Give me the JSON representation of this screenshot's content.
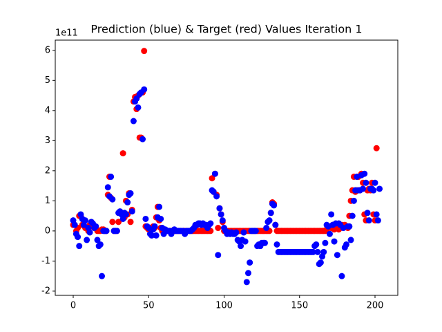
{
  "chart_data": {
    "type": "scatter",
    "title": "Prediction (blue) & Target (red) Values Iteration 1",
    "y_offset_label": "1e11",
    "xlim": [
      -11.9,
      215.1
    ],
    "ylim": [
      -2.14,
      6.34
    ],
    "xticks": [
      0,
      50,
      100,
      150,
      200
    ],
    "yticks": [
      -2,
      -1,
      0,
      1,
      2,
      3,
      4,
      5,
      6
    ],
    "x": [
      0,
      1,
      2,
      3,
      4,
      5,
      6,
      7,
      8,
      9,
      10,
      11,
      12,
      13,
      14,
      15,
      16,
      17,
      18,
      19,
      20,
      21,
      22,
      23,
      24,
      25,
      26,
      27,
      28,
      29,
      30,
      31,
      32,
      33,
      34,
      35,
      36,
      37,
      38,
      39,
      40,
      41,
      42,
      43,
      44,
      45,
      46,
      47,
      48,
      49,
      50,
      51,
      52,
      53,
      54,
      55,
      56,
      57,
      58,
      59,
      60,
      61,
      62,
      63,
      64,
      65,
      66,
      67,
      68,
      69,
      70,
      71,
      72,
      73,
      74,
      75,
      76,
      77,
      78,
      79,
      80,
      81,
      82,
      83,
      84,
      85,
      86,
      87,
      88,
      89,
      90,
      91,
      92,
      93,
      94,
      95,
      96,
      97,
      98,
      99,
      100,
      101,
      102,
      103,
      104,
      105,
      106,
      107,
      108,
      109,
      110,
      111,
      112,
      113,
      114,
      115,
      116,
      117,
      118,
      119,
      120,
      121,
      122,
      123,
      124,
      125,
      126,
      127,
      128,
      129,
      130,
      131,
      132,
      133,
      134,
      135,
      136,
      137,
      138,
      139,
      140,
      141,
      142,
      143,
      144,
      145,
      146,
      147,
      148,
      149,
      150,
      151,
      152,
      153,
      154,
      155,
      156,
      157,
      158,
      159,
      160,
      161,
      162,
      163,
      164,
      165,
      166,
      167,
      168,
      169,
      170,
      171,
      172,
      173,
      174,
      175,
      176,
      177,
      178,
      179,
      180,
      181,
      182,
      183,
      184,
      185,
      186,
      187,
      188,
      189,
      190,
      191,
      192,
      193,
      194,
      195,
      196,
      197,
      198,
      199,
      200,
      201,
      202,
      203
    ],
    "series": [
      {
        "name": "Target",
        "color": "#ff0000",
        "values": [
          0.2,
          0.2,
          0,
          0.1,
          0.5,
          0.5,
          0.2,
          0.3,
          0.1,
          0.1,
          0,
          0.2,
          0.15,
          0.2,
          0.1,
          0.1,
          0,
          0,
          0,
          0.05,
          0.05,
          0,
          0,
          1.2,
          1.8,
          1.1,
          0.3,
          0,
          0,
          0,
          0.3,
          0.6,
          0.6,
          2.58,
          0.45,
          1.0,
          0.55,
          1.25,
          0.3,
          0.7,
          4.3,
          4.45,
          4.05,
          4.5,
          3.1,
          3.1,
          4.6,
          5.98,
          0.15,
          0.1,
          0.05,
          0.1,
          0.05,
          0.15,
          0.1,
          0.45,
          0.8,
          0.35,
          0.1,
          0,
          0,
          0,
          0,
          0,
          0,
          0,
          0,
          0,
          0,
          0,
          0,
          0,
          0,
          0,
          0,
          0,
          0,
          0,
          0,
          0,
          0,
          0,
          0,
          0,
          0,
          0,
          0,
          0,
          0,
          0,
          0,
          0,
          1.75,
          1.3,
          1.9,
          1.2,
          0.1,
          0.75,
          0.55,
          0.3,
          0,
          0,
          0,
          0,
          0,
          0,
          0,
          0,
          0,
          0,
          0,
          0,
          0,
          0,
          0,
          0,
          0,
          0,
          0,
          0,
          0,
          0,
          0,
          0,
          0,
          0,
          0,
          0,
          0,
          0,
          0,
          0.6,
          0.95,
          0.9,
          0.2,
          0,
          0,
          0,
          0,
          0,
          0,
          0,
          0,
          0,
          0,
          0,
          0,
          0,
          0,
          0,
          0,
          0,
          0,
          0,
          0,
          0,
          0,
          0,
          0,
          0,
          0,
          0,
          0,
          0,
          0,
          0,
          0,
          0,
          0.05,
          0.1,
          0.15,
          0.1,
          0.2,
          0.05,
          0.2,
          0.2,
          0.05,
          0.1,
          0.2,
          0.15,
          0.2,
          0.15,
          0.1,
          0.5,
          1.0,
          1.35,
          1.8,
          1.3,
          1.35,
          1.8,
          1.35,
          1.9,
          1.6,
          0.55,
          0.35,
          1.35,
          1.4,
          1.35,
          1.6,
          0.55,
          0.35,
          2.75
        ]
      },
      {
        "name": "Prediction",
        "color": "#0000ff",
        "values": [
          0.35,
          0.2,
          -0.1,
          -0.2,
          -0.5,
          0.55,
          0.4,
          0.2,
          0.35,
          -0.3,
          0.1,
          -0.05,
          0.3,
          0.25,
          0.1,
          0.15,
          -0.3,
          -0.5,
          -0.45,
          -1.5,
          0,
          0,
          0,
          1.45,
          1.15,
          1.8,
          1.05,
          0,
          0,
          0,
          0.6,
          0.65,
          0.55,
          0.4,
          0.6,
          0.55,
          0.95,
          1.2,
          1.25,
          0.65,
          3.65,
          4.3,
          4.4,
          4.1,
          4.55,
          4.6,
          3.05,
          4.7,
          0.4,
          0.15,
          0.1,
          -0.1,
          -0.15,
          0.05,
          0.15,
          -0.15,
          0.45,
          0.8,
          0.4,
          0.1,
          -0.1,
          0.05,
          0,
          0,
          0,
          -0.1,
          0,
          0.05,
          0,
          0,
          0,
          0,
          0,
          0,
          -0.1,
          0,
          0,
          0,
          0,
          0.05,
          0.1,
          0.2,
          0.2,
          0.25,
          0.25,
          0.2,
          0.25,
          0.2,
          0.2,
          0.1,
          0.2,
          0.25,
          1.35,
          1.3,
          1.9,
          1.15,
          -0.8,
          0.75,
          0.55,
          0.35,
          0.1,
          0,
          -0.1,
          -0.05,
          -0.1,
          -0.05,
          -0.1,
          -0.1,
          -0.05,
          -0.3,
          -0.35,
          -0.5,
          -0.3,
          -0.05,
          -0.35,
          -1.7,
          -1.4,
          -1.05,
          0,
          0,
          0,
          0,
          -0.5,
          -0.45,
          -0.5,
          -0.4,
          -0.4,
          -0.4,
          0.1,
          0.3,
          0.35,
          0.6,
          0.9,
          0.85,
          0.2,
          -0.45,
          -0.7,
          -0.7,
          -0.7,
          -0.7,
          -0.7,
          -0.7,
          -0.7,
          -0.7,
          -0.7,
          -0.7,
          -0.7,
          -0.7,
          -0.7,
          -0.7,
          -0.7,
          -0.7,
          -0.7,
          -0.7,
          -0.7,
          -0.7,
          -0.7,
          -0.7,
          -0.7,
          -0.7,
          -0.5,
          -0.45,
          -0.7,
          -1.1,
          -1.05,
          -0.85,
          -0.7,
          -0.4,
          0.2,
          0.15,
          -0.1,
          0.55,
          0.2,
          -0.35,
          0.25,
          -0.8,
          0.25,
          0.2,
          -1.5,
          0.1,
          -0.55,
          -0.45,
          0.15,
          0.15,
          -0.3,
          0.5,
          1.0,
          1.35,
          1.8,
          1.35,
          1.35,
          1.85,
          1.4,
          1.9,
          1.6,
          0.6,
          0.35,
          1.4,
          1.4,
          1.35,
          1.6,
          0.55,
          0.35,
          1.4
        ]
      }
    ]
  }
}
